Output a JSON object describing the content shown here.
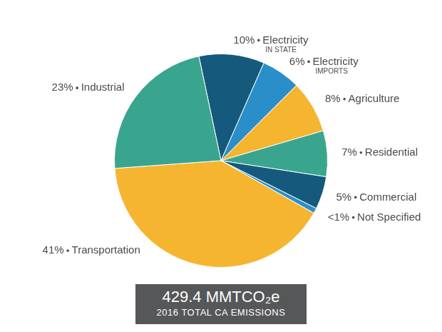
{
  "chart_data": {
    "type": "pie",
    "categories": [
      "Electricity",
      "Electricity",
      "Agriculture",
      "Residential",
      "Commercial",
      "Not Specified",
      "Transportation",
      "Industrial"
    ],
    "category_sublabels": [
      "IN STATE",
      "IMPORTS",
      null,
      null,
      null,
      null,
      null,
      null
    ],
    "values": [
      10,
      6,
      8,
      7,
      5,
      0.8,
      41,
      23
    ],
    "value_labels": [
      "10%",
      "6%",
      "8%",
      "7%",
      "5%",
      "<1%",
      "41%",
      "23%"
    ],
    "colors": [
      "#155a7c",
      "#2a8fc9",
      "#f6b531",
      "#3aa58f",
      "#155a7c",
      "#2a8fc9",
      "#f6b531",
      "#3aa58f"
    ],
    "data_labels": true,
    "annotations": [
      "429.4 MMTCO₂e",
      "2016 TOTAL CA EMISSIONS"
    ]
  }
}
